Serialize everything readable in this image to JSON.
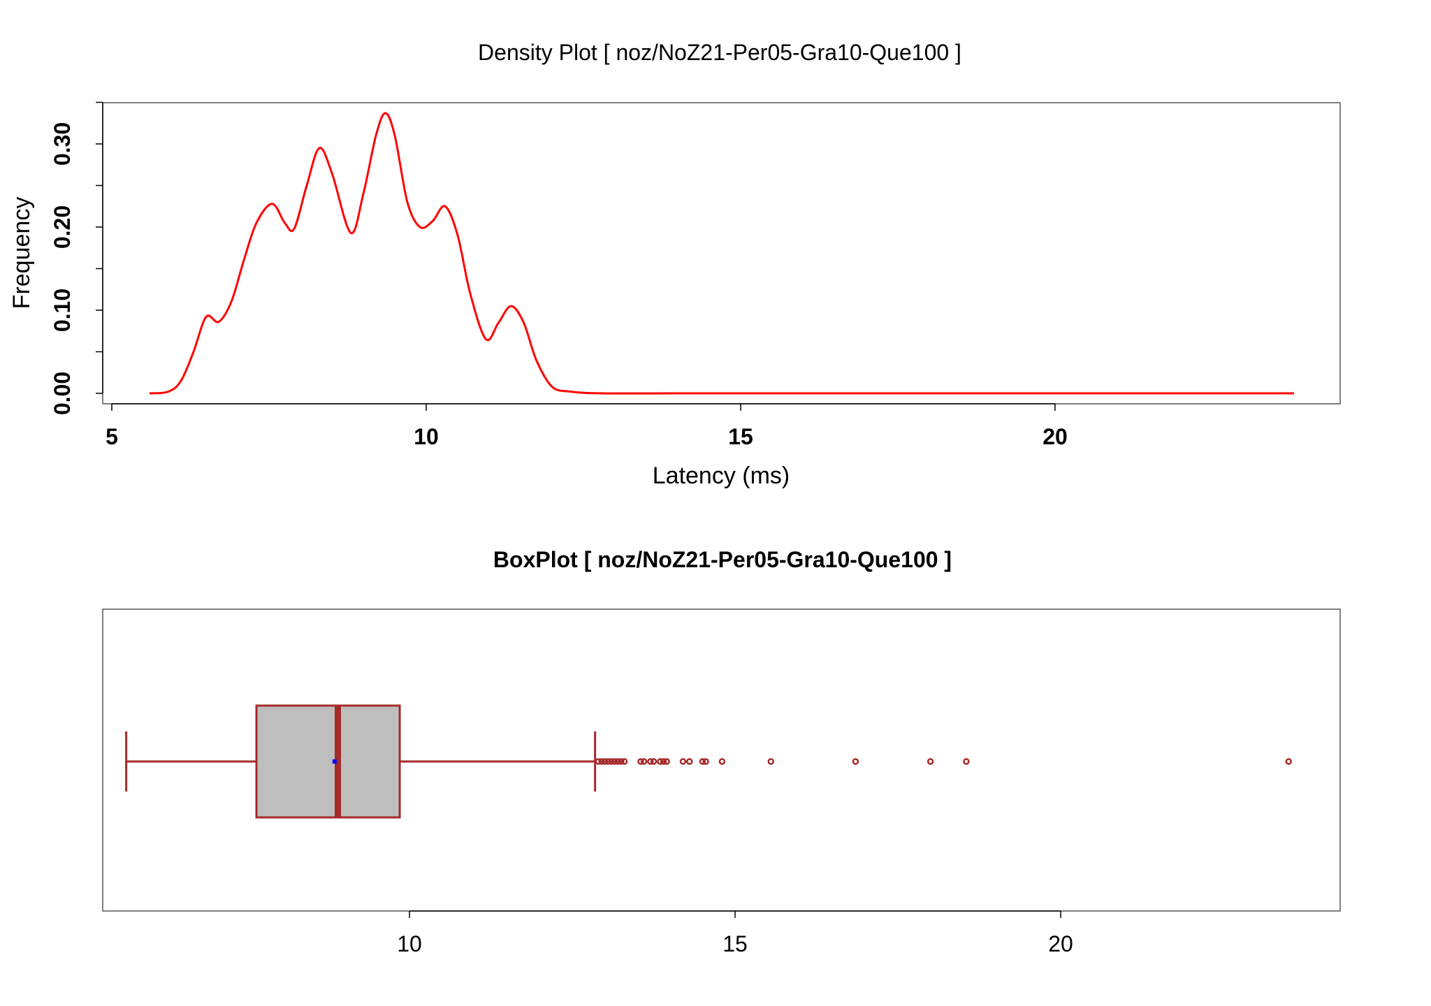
{
  "colors": {
    "density_line": "#ff0000",
    "box_border": "#a52a2a",
    "box_fill": "#bebebe",
    "mean_point": "#0000ff",
    "frame": "#555555"
  },
  "chart_data": [
    {
      "type": "line",
      "title": "Density Plot [ noz/NoZ21-Per05-Gra10-Que100 ]",
      "xlabel": "Latency (ms)",
      "ylabel": "Frequency",
      "xlim": [
        5,
        24
      ],
      "ylim": [
        0,
        0.34
      ],
      "xticks": [
        5,
        10,
        15,
        20
      ],
      "yticks": [
        0.0,
        0.1,
        0.2,
        0.3
      ],
      "ytick_labels": [
        "0.00",
        "0.10",
        "0.20",
        "0.30"
      ],
      "grid": false,
      "x": [
        5.6,
        5.9,
        6.1,
        6.3,
        6.5,
        6.7,
        6.9,
        7.1,
        7.3,
        7.55,
        7.75,
        7.9,
        8.1,
        8.3,
        8.5,
        8.8,
        9.0,
        9.2,
        9.35,
        9.5,
        9.7,
        9.9,
        10.1,
        10.3,
        10.5,
        10.7,
        10.95,
        11.15,
        11.35,
        11.55,
        11.75,
        12.0,
        12.3,
        12.8,
        14.0,
        16.0,
        18.0,
        20.0,
        22.0,
        23.8
      ],
      "y": [
        0.0,
        0.002,
        0.015,
        0.05,
        0.092,
        0.086,
        0.11,
        0.16,
        0.205,
        0.228,
        0.205,
        0.198,
        0.25,
        0.295,
        0.265,
        0.193,
        0.24,
        0.31,
        0.337,
        0.31,
        0.23,
        0.2,
        0.207,
        0.225,
        0.19,
        0.12,
        0.065,
        0.085,
        0.105,
        0.085,
        0.04,
        0.008,
        0.002,
        0.0,
        0.0,
        0.0,
        0.0,
        0.0,
        0.0,
        0.0
      ]
    },
    {
      "type": "box",
      "title": "BoxPlot [ noz/NoZ21-Per05-Gra10-Que100 ]",
      "orientation": "horizontal",
      "xlim": [
        5.3,
        24.3
      ],
      "xticks": [
        10,
        15,
        20
      ],
      "whisker_low": 5.65,
      "q1": 7.65,
      "median": 8.9,
      "mean": 8.85,
      "q3": 9.85,
      "whisker_high": 12.85,
      "outliers": [
        12.9,
        12.95,
        13.0,
        13.05,
        13.1,
        13.15,
        13.2,
        13.25,
        13.3,
        13.55,
        13.6,
        13.7,
        13.75,
        13.85,
        13.9,
        13.95,
        14.2,
        14.3,
        14.5,
        14.55,
        14.8,
        15.55,
        16.85,
        18.0,
        18.55,
        23.5
      ]
    }
  ]
}
